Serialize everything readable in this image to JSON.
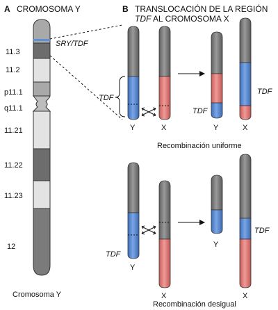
{
  "panel_a": {
    "letter": "A",
    "title": "CROMOSOMA Y",
    "bands": [
      "11.3",
      "11.2",
      "p11.1",
      "q11.1",
      "11.21",
      "11.22",
      "11.23",
      "12"
    ],
    "gene_label": "SRY/TDF",
    "caption": "Cromosoma Y"
  },
  "panel_b": {
    "letter": "B",
    "title_line1": "TRANSLOCACIÓN DE LA REGIÓN",
    "title_line2_gene": "TDF",
    "title_line2_rest": " AL CROMOSOMA X",
    "uniform": {
      "tdf_before": "TDF",
      "label_y_before": "Y",
      "label_x_before": "X",
      "tdf_after_y": "TDF",
      "tdf_after_x": "TDF",
      "label_y_after": "Y",
      "label_x_after": "X",
      "caption": "Recombinación uniforme"
    },
    "unequal": {
      "tdf_before": "TDF",
      "label_y_before": "Y",
      "label_x_before": "X",
      "tdf_after_x": "TDF",
      "label_y_after": "Y",
      "label_x_after": "X",
      "caption": "Recombinación desigual"
    }
  },
  "colors": {
    "gray": "#7b7b7b",
    "blue": "#5c8fd6",
    "red": "#e07b78",
    "band_dark": "#6d6d6d",
    "band_mid": "#a9a9a9",
    "band_light": "#e3e3e3"
  }
}
